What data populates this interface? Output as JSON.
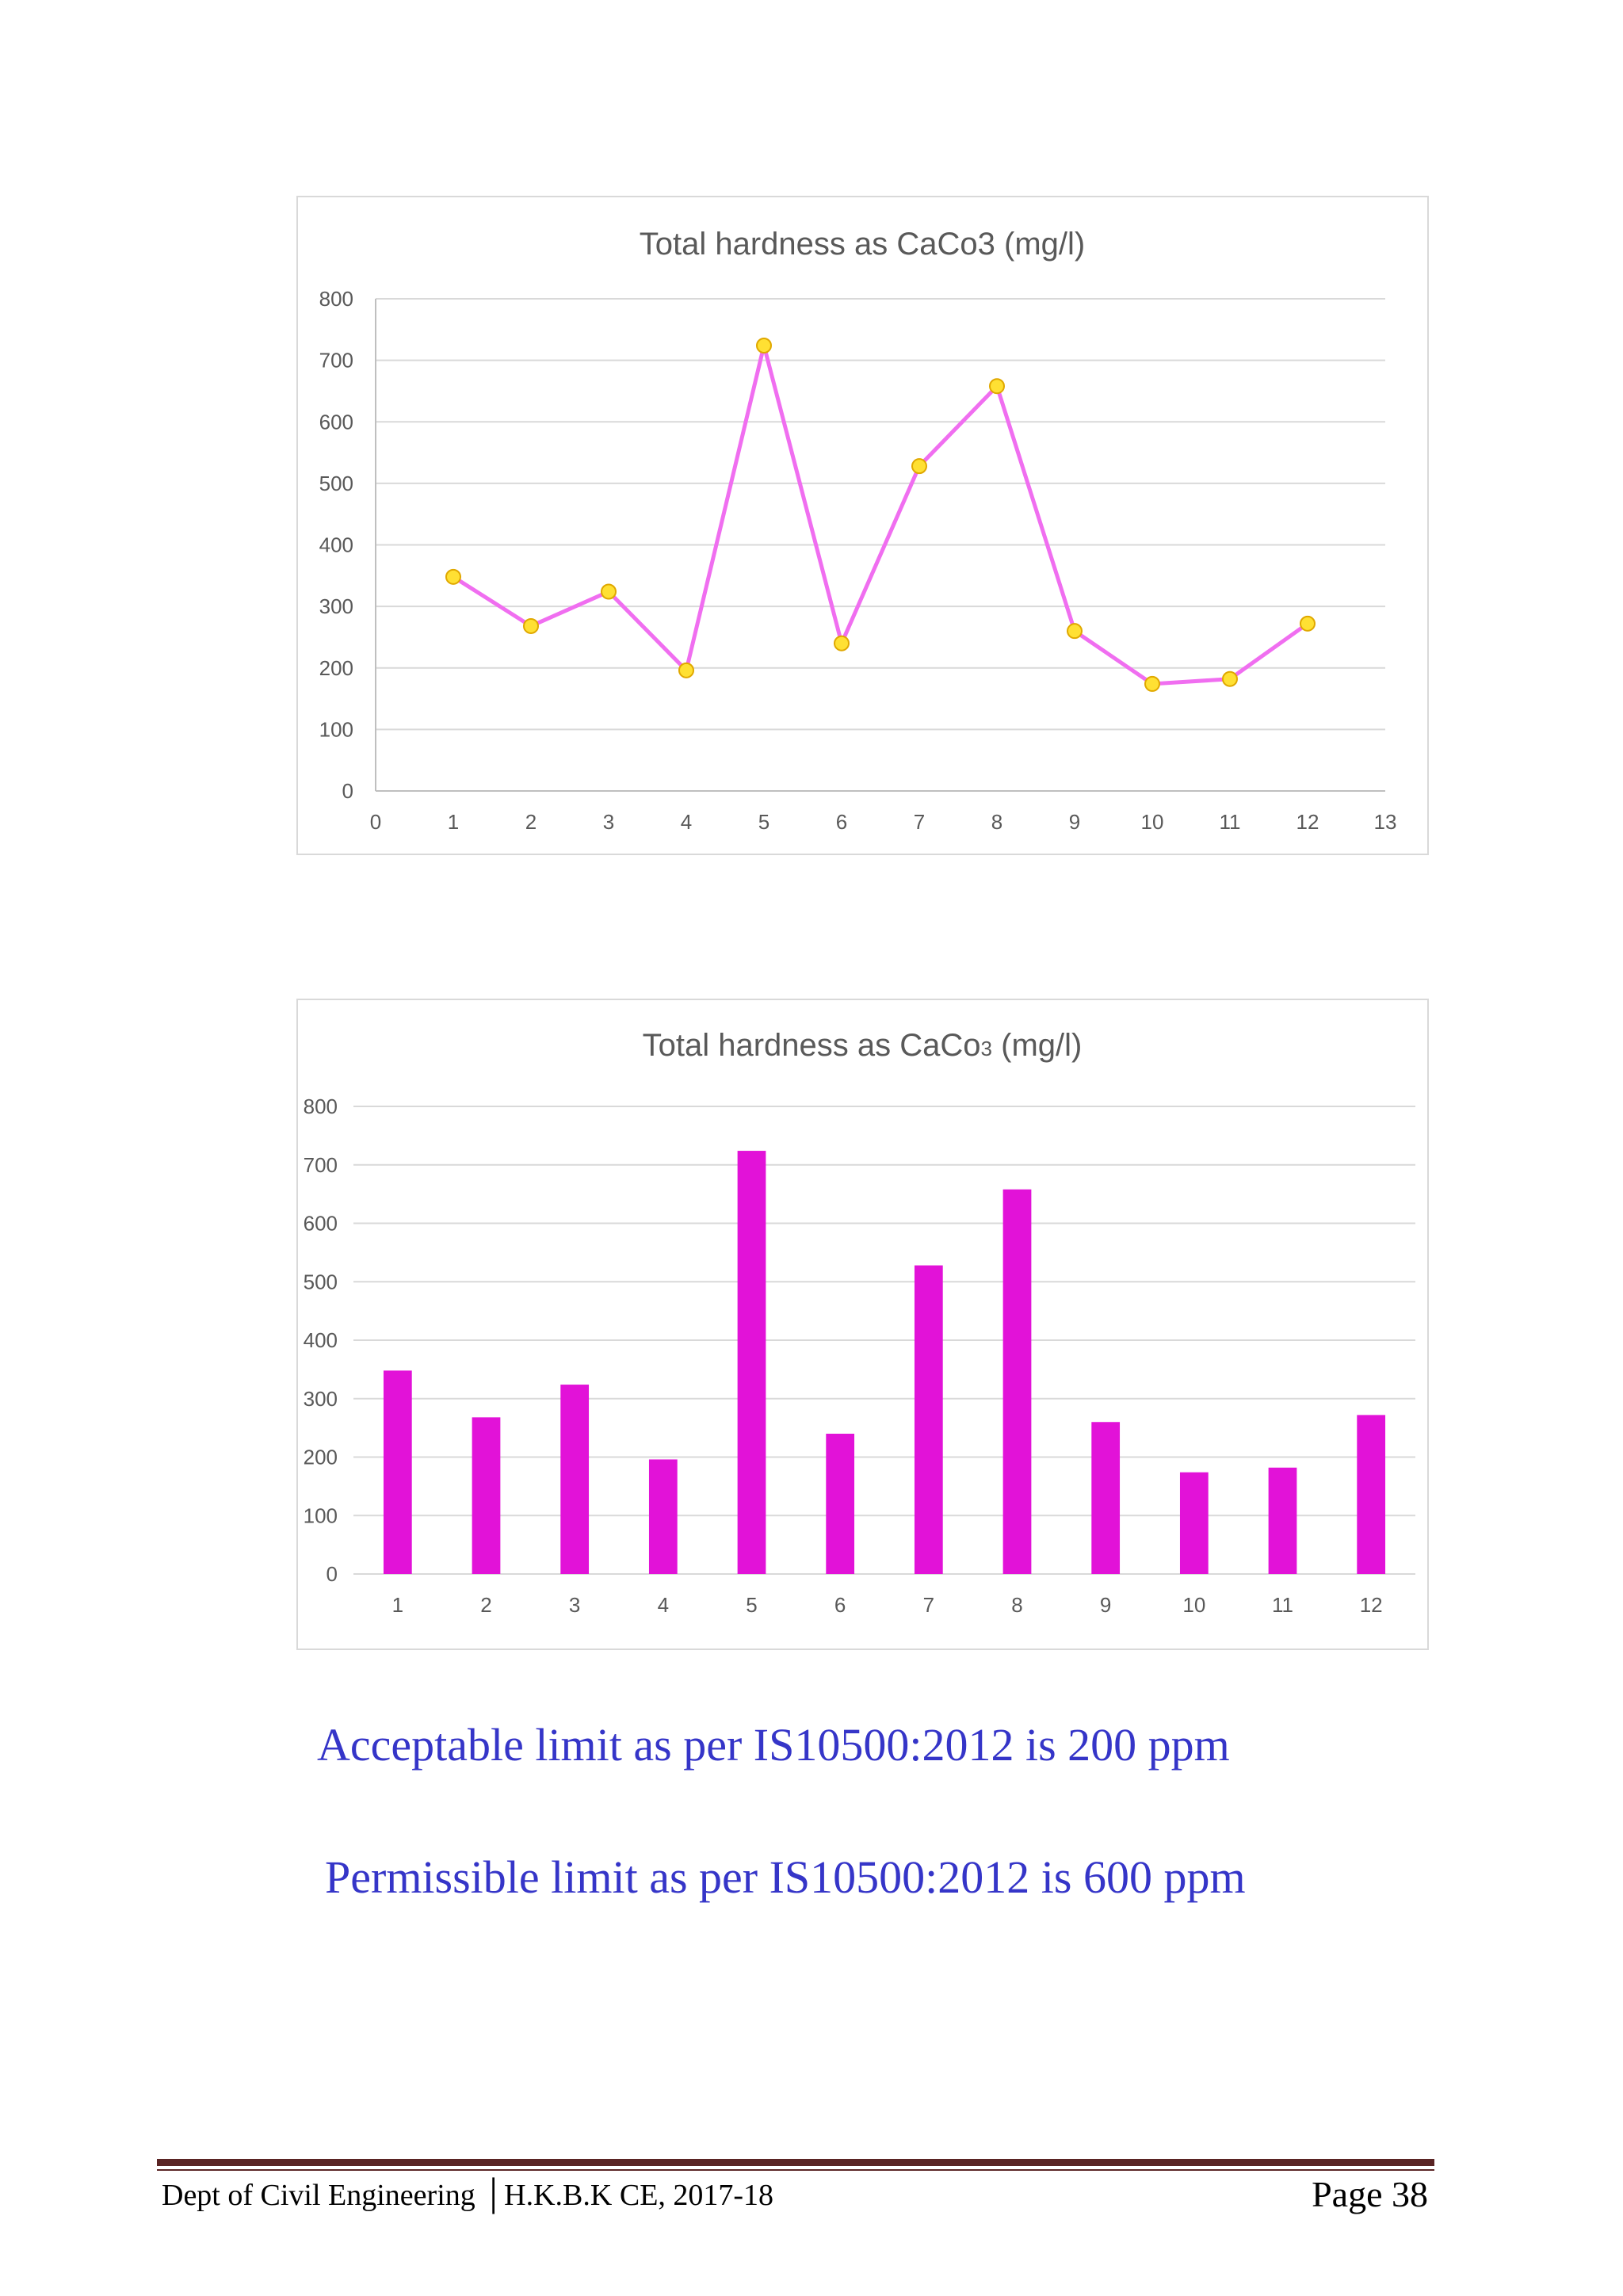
{
  "chart_data": [
    {
      "type": "line",
      "title": "Total hardness as CaCo3 (mg/l)",
      "x": [
        1,
        2,
        3,
        4,
        5,
        6,
        7,
        8,
        9,
        10,
        11,
        12
      ],
      "values": [
        348,
        268,
        324,
        196,
        724,
        240,
        528,
        658,
        260,
        174,
        182,
        272
      ],
      "xlim": [
        0,
        13
      ],
      "ylim": [
        0,
        800
      ],
      "xticks": [
        0,
        1,
        2,
        3,
        4,
        5,
        6,
        7,
        8,
        9,
        10,
        11,
        12,
        13
      ],
      "yticks": [
        0,
        100,
        200,
        300,
        400,
        500,
        600,
        700,
        800
      ],
      "xlabel": "",
      "ylabel": "",
      "grid": true,
      "line_color": "#f06ef0",
      "marker_color": "#ffe033"
    },
    {
      "type": "bar",
      "title_main": "Total hardness as CaCo",
      "title_sub": "3",
      "title_tail": " (mg/l)",
      "categories": [
        "1",
        "2",
        "3",
        "4",
        "5",
        "6",
        "7",
        "8",
        "9",
        "10",
        "11",
        "12"
      ],
      "values": [
        348,
        268,
        324,
        196,
        724,
        240,
        528,
        658,
        260,
        174,
        182,
        272
      ],
      "ylim": [
        0,
        800
      ],
      "yticks": [
        0,
        100,
        200,
        300,
        400,
        500,
        600,
        700,
        800
      ],
      "xlabel": "",
      "ylabel": "",
      "grid": true,
      "bar_color": "#e212d8"
    }
  ],
  "notes": {
    "acceptable": "Acceptable limit as per IS10500:2012 is 200 ppm",
    "permissible": "Permissible limit as per IS10500:2012 is 600 ppm"
  },
  "footer": {
    "left": "Dept of Civil Engineering │H.K.B.K CE, 2017-18",
    "right": "Page 38"
  }
}
